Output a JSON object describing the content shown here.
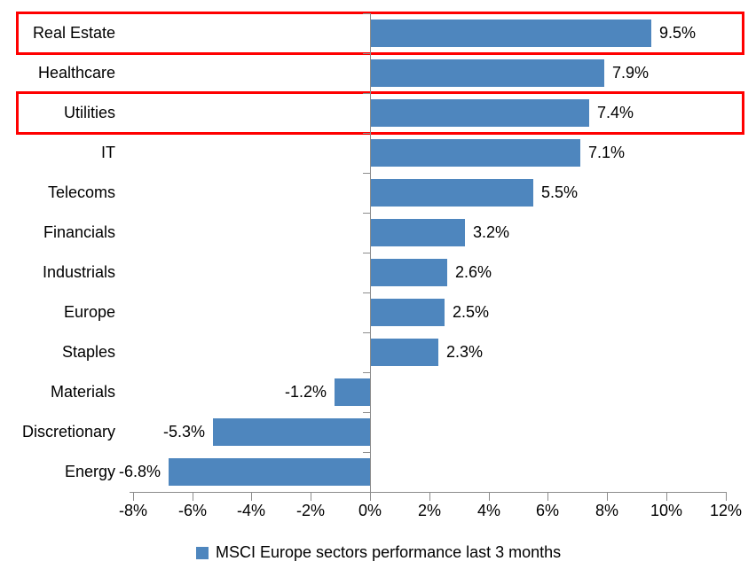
{
  "chart_data": {
    "type": "bar",
    "orientation": "horizontal",
    "title": "",
    "legend": "MSCI Europe sectors performance last 3 months",
    "legend_position": "bottom",
    "grid": false,
    "categories": [
      "Real Estate",
      "Healthcare",
      "Utilities",
      "IT",
      "Telecoms",
      "Financials",
      "Industrials",
      "Europe",
      "Staples",
      "Materials",
      "Discretionary",
      "Energy"
    ],
    "values": [
      9.5,
      7.9,
      7.4,
      7.1,
      5.5,
      3.2,
      2.6,
      2.5,
      2.3,
      -1.2,
      -5.3,
      -6.8
    ],
    "value_labels": [
      "9.5%",
      "7.9%",
      "7.4%",
      "7.1%",
      "5.5%",
      "3.2%",
      "2.6%",
      "2.5%",
      "2.3%",
      "-1.2%",
      "-5.3%",
      "-6.8%"
    ],
    "x_ticks": [
      "-8%",
      "-6%",
      "-4%",
      "-2%",
      "0%",
      "2%",
      "4%",
      "6%",
      "8%",
      "10%",
      "12%"
    ],
    "x_tick_values": [
      -8,
      -6,
      -4,
      -2,
      0,
      2,
      4,
      6,
      8,
      10,
      12
    ],
    "xlim": [
      -8,
      12
    ],
    "highlighted_categories": [
      "Real Estate",
      "Utilities"
    ],
    "colors": {
      "bar": "#4E86BE",
      "highlight_box": "#FF0000",
      "axis": "#8C8C8C",
      "text": "#000000",
      "background": "#FFFFFF"
    }
  }
}
